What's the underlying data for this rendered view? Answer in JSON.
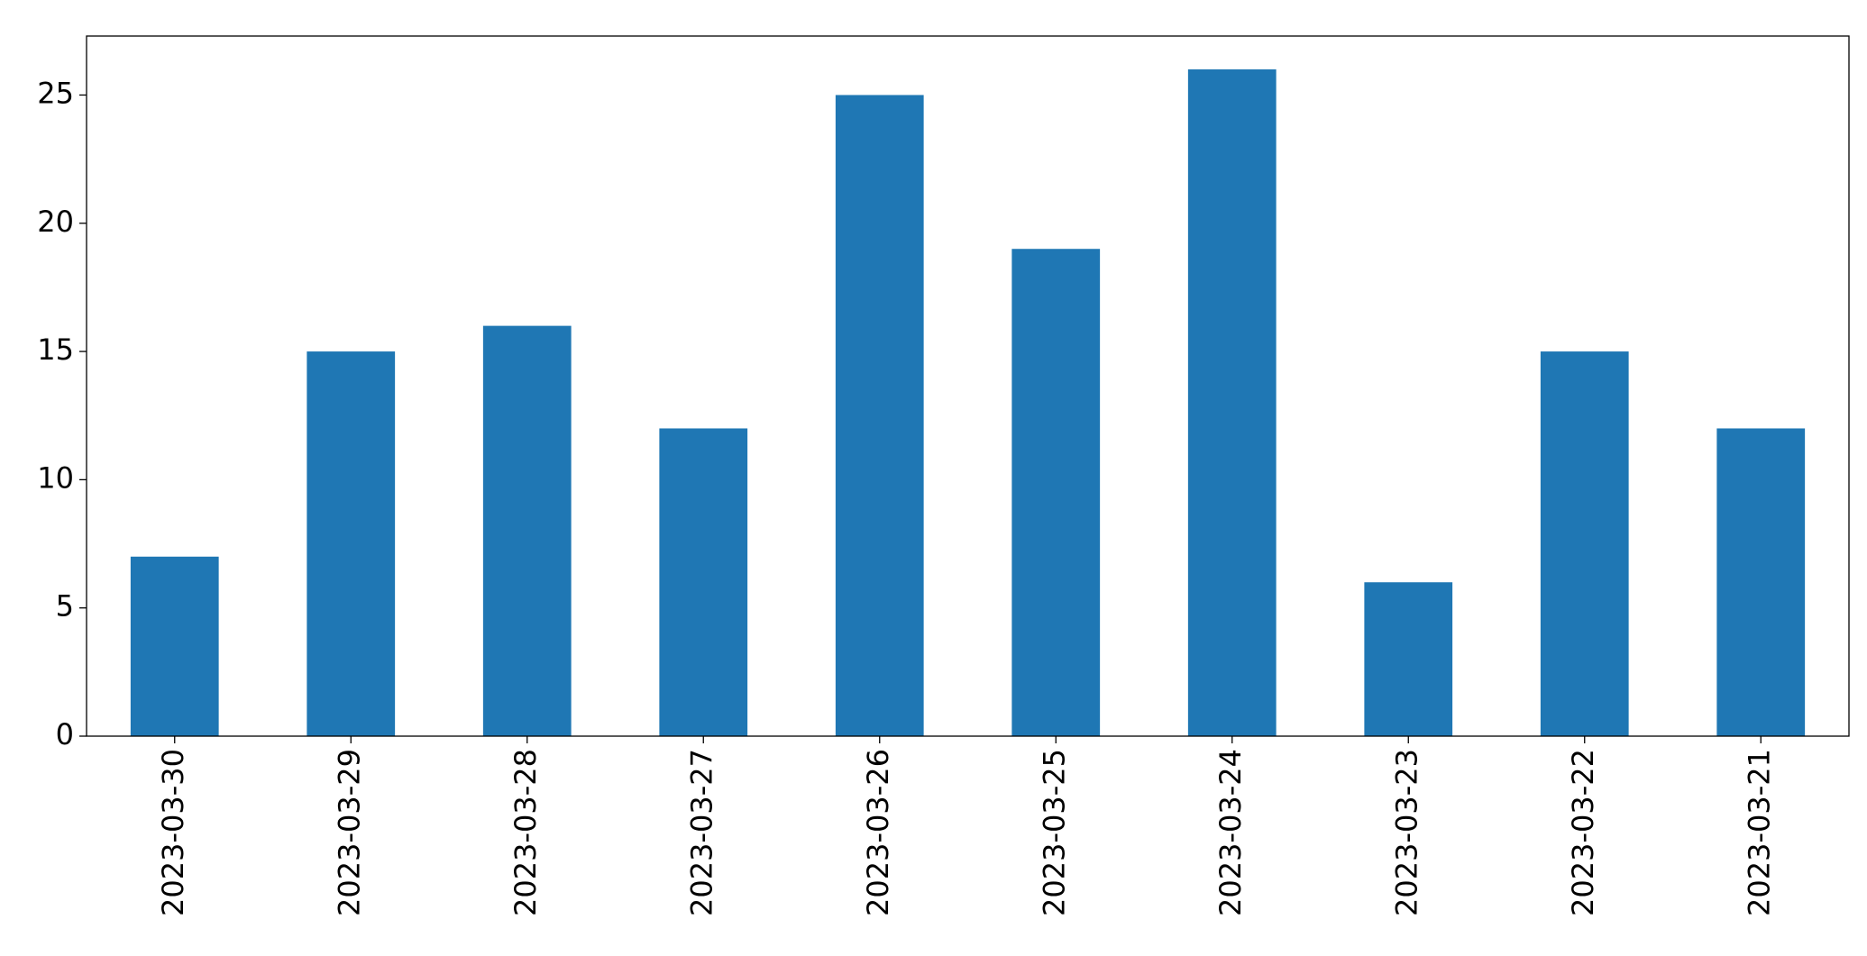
{
  "chart_data": {
    "type": "bar",
    "categories": [
      "2023-03-30",
      "2023-03-29",
      "2023-03-28",
      "2023-03-27",
      "2023-03-26",
      "2023-03-25",
      "2023-03-24",
      "2023-03-23",
      "2023-03-22",
      "2023-03-21"
    ],
    "values": [
      7,
      15,
      16,
      12,
      25,
      19,
      26,
      6,
      15,
      12
    ],
    "color": "#1f77b4",
    "ylim": [
      0,
      27.3
    ],
    "yticks": [
      0,
      5,
      10,
      15,
      20,
      25
    ],
    "grid": false
  }
}
